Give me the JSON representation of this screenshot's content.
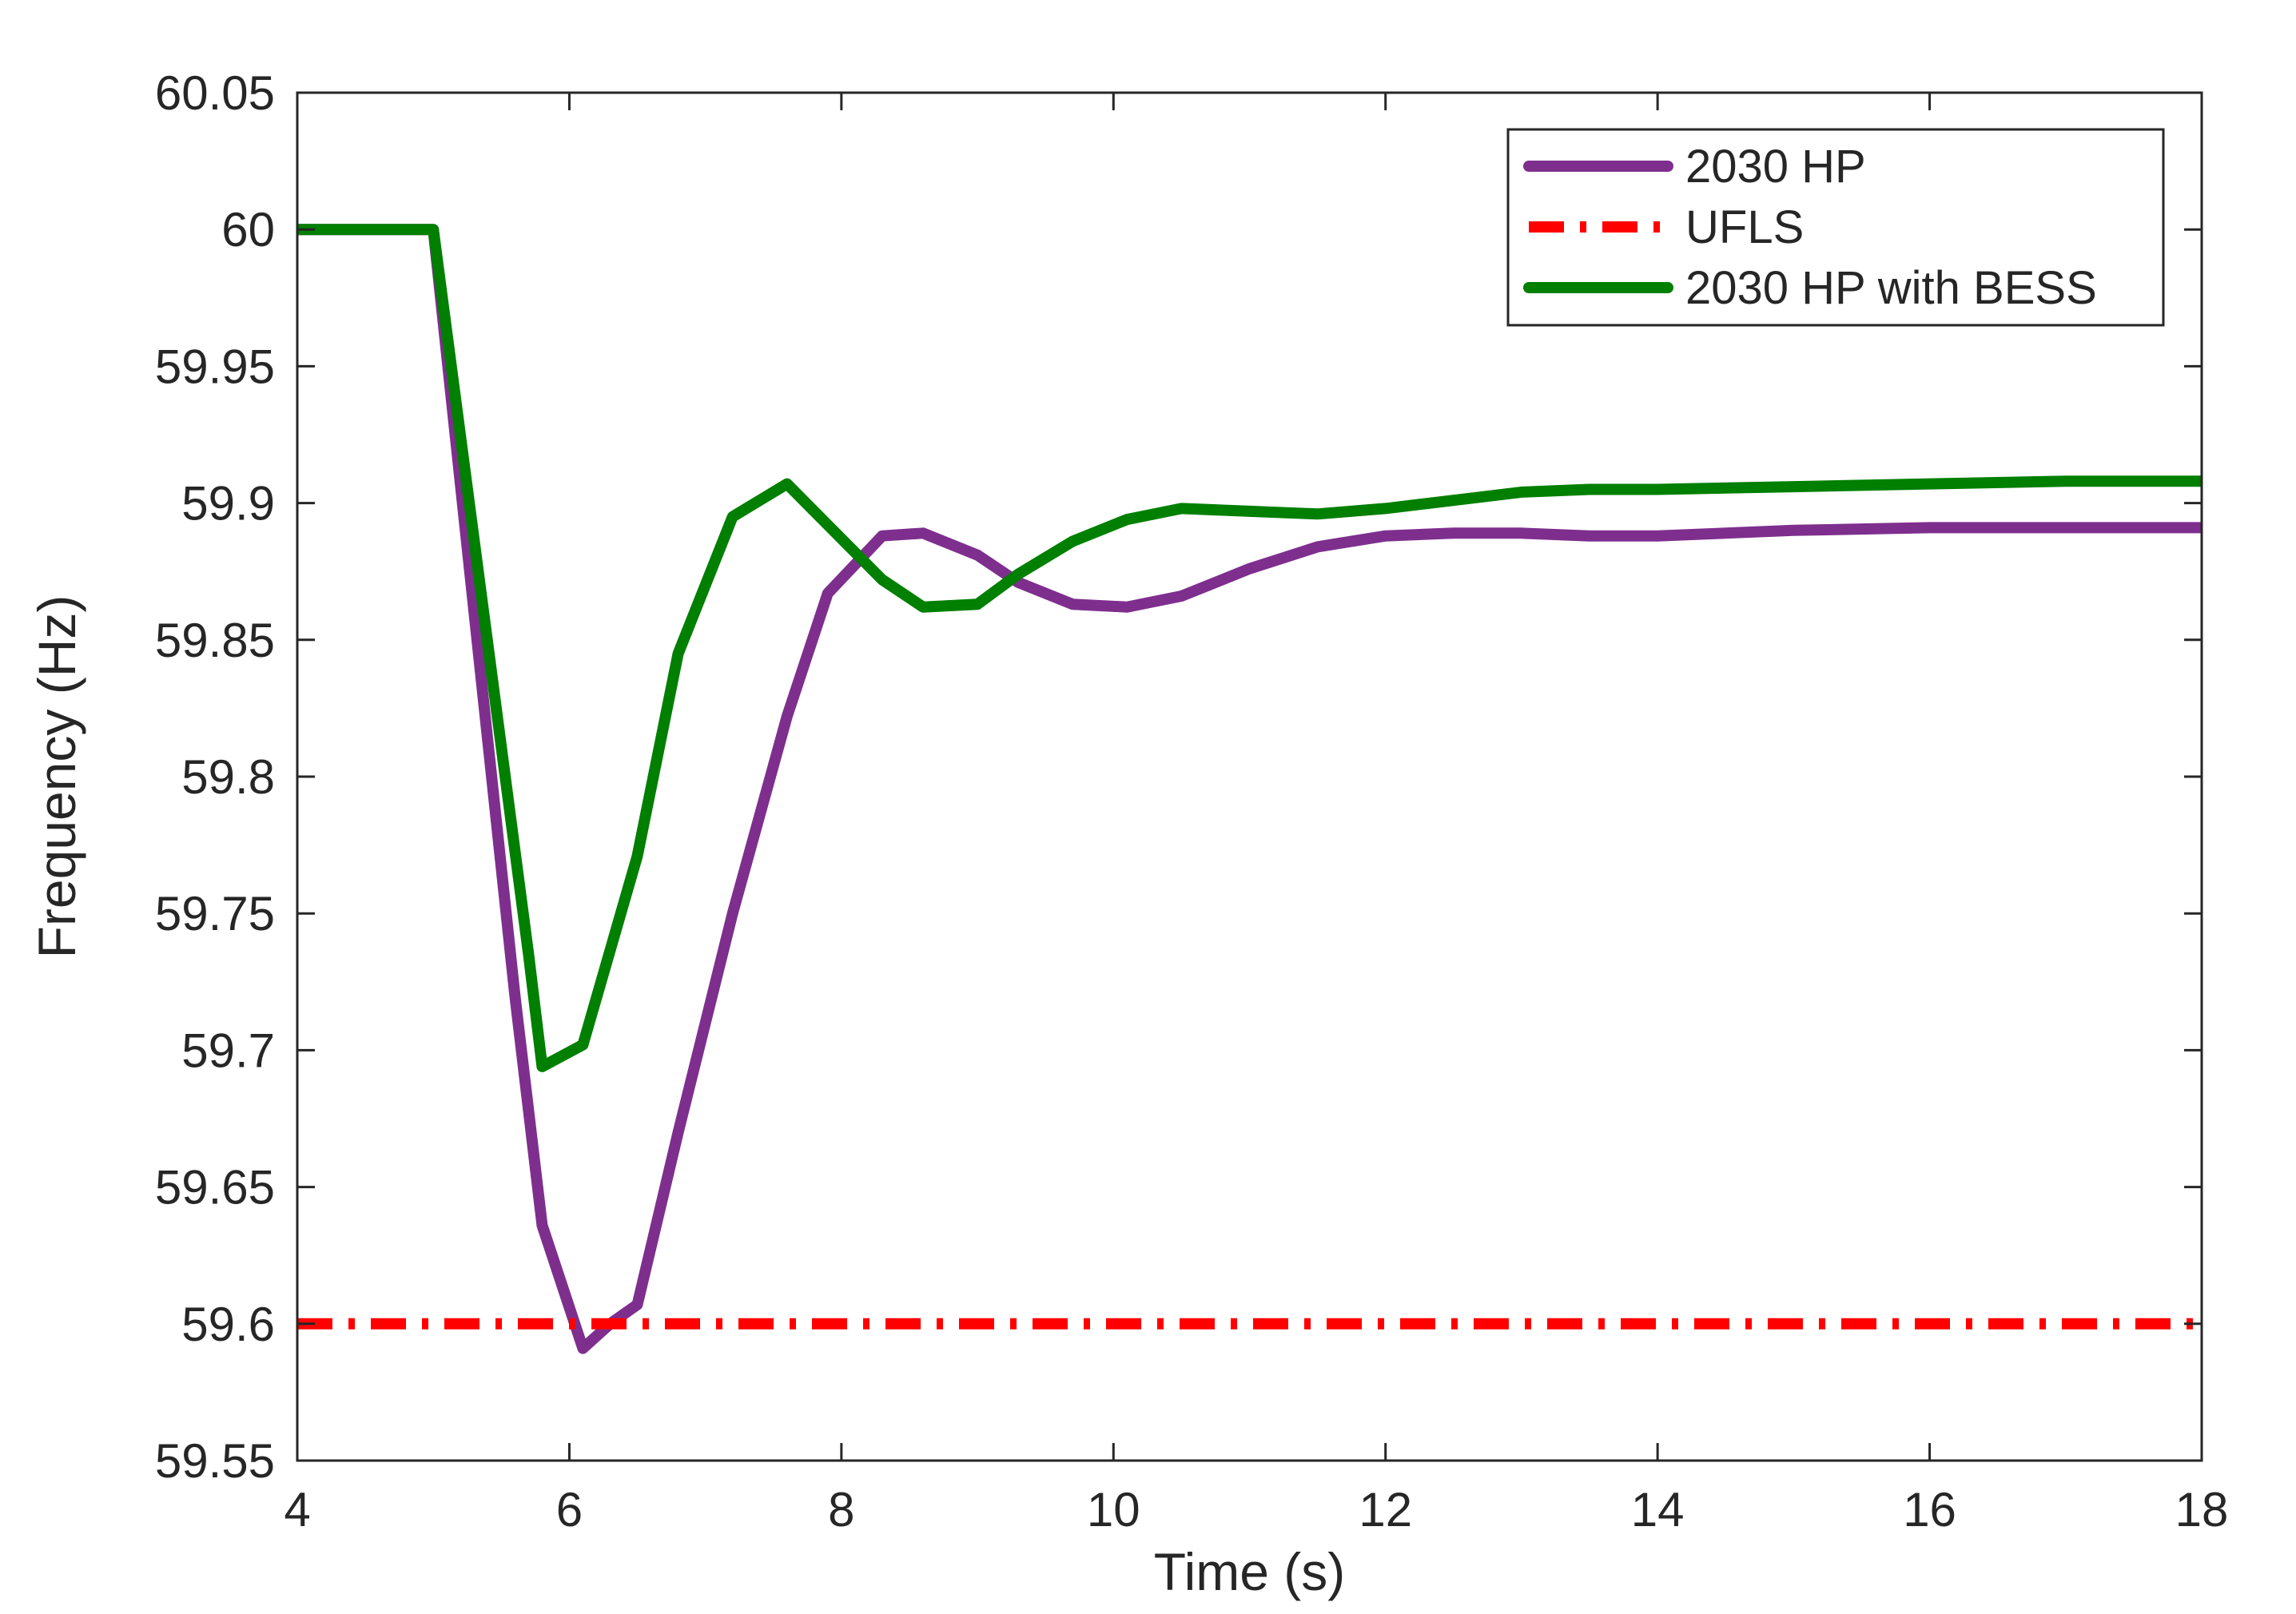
{
  "chart_data": {
    "type": "line",
    "title": "",
    "xlabel": "Time (s)",
    "ylabel": "Frequency (Hz)",
    "xlim": [
      4,
      18
    ],
    "ylim": [
      59.55,
      60.05
    ],
    "xticks": [
      "4",
      "6",
      "8",
      "10",
      "12",
      "14",
      "16",
      "18"
    ],
    "yticks": [
      "59.55",
      "59.6",
      "59.65",
      "59.7",
      "59.75",
      "59.8",
      "59.85",
      "59.9",
      "59.95",
      "60",
      "60.05"
    ],
    "grid": false,
    "legend_position": "top-right",
    "series": [
      {
        "name": "2030 HP",
        "color": "#7E2F8E",
        "style": "solid",
        "x": [
          4,
          5,
          5.6,
          5.8,
          6.1,
          6.3,
          6.5,
          6.8,
          7.2,
          7.6,
          7.9,
          8.3,
          8.6,
          9.0,
          9.3,
          9.7,
          10.1,
          10.5,
          11.0,
          11.5,
          12.0,
          12.5,
          13.0,
          13.5,
          14.0,
          15.0,
          16.0,
          17.0,
          18.0
        ],
        "y": [
          60.0,
          60.0,
          59.72,
          59.636,
          59.591,
          59.6,
          59.607,
          59.67,
          59.75,
          59.822,
          59.867,
          59.888,
          59.889,
          59.881,
          59.871,
          59.863,
          59.862,
          59.866,
          59.876,
          59.884,
          59.888,
          59.889,
          59.889,
          59.888,
          59.888,
          59.89,
          59.891,
          59.891,
          59.891
        ]
      },
      {
        "name": "UFLS",
        "color": "#FF0000",
        "style": "dashdot",
        "x": [
          4,
          18
        ],
        "y": [
          59.6,
          59.6
        ]
      },
      {
        "name": "2030 HP with BESS",
        "color": "#007F00",
        "style": "solid",
        "x": [
          4,
          5,
          5.7,
          5.8,
          6.1,
          6.5,
          6.8,
          7.2,
          7.6,
          7.9,
          8.3,
          8.6,
          9.0,
          9.3,
          9.7,
          10.1,
          10.5,
          11.0,
          11.5,
          12.0,
          12.5,
          13.0,
          13.5,
          14.0,
          15.0,
          16.0,
          17.0,
          18.0
        ],
        "y": [
          60.0,
          60.0,
          59.735,
          59.694,
          59.702,
          59.771,
          59.845,
          59.895,
          59.907,
          59.892,
          59.872,
          59.862,
          59.863,
          59.874,
          59.886,
          59.894,
          59.898,
          59.897,
          59.896,
          59.898,
          59.901,
          59.904,
          59.905,
          59.905,
          59.906,
          59.907,
          59.908,
          59.908
        ]
      }
    ]
  }
}
